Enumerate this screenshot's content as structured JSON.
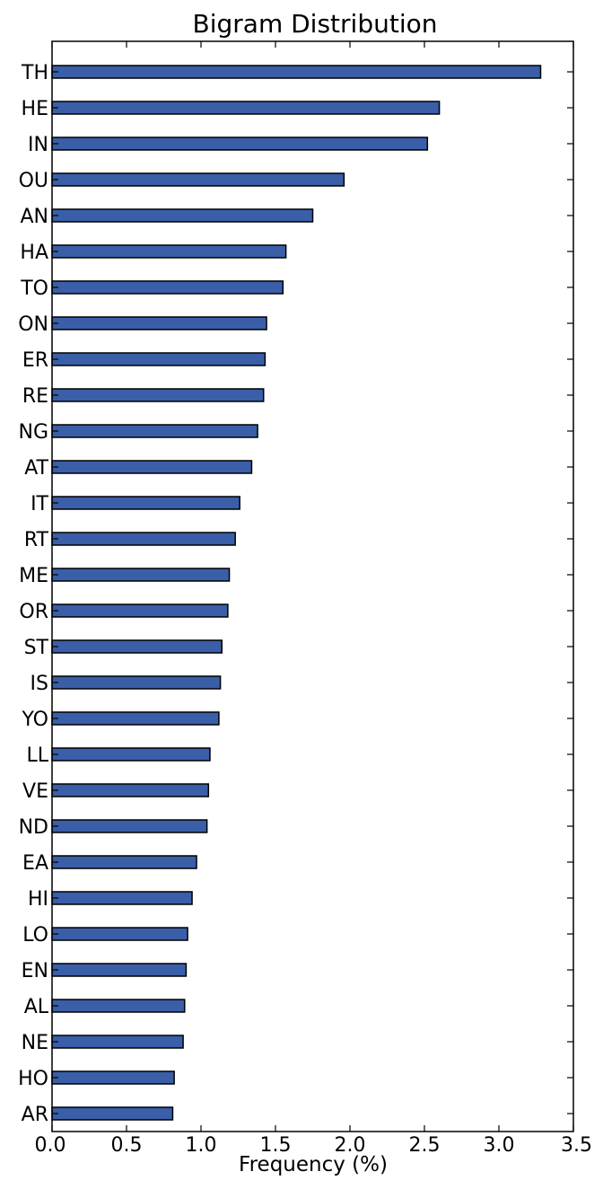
{
  "chart_data": {
    "type": "bar",
    "orientation": "horizontal",
    "title": "Bigram Distribution",
    "xlabel": "Frequency (%)",
    "ylabel": "",
    "xlim": [
      0,
      3.5
    ],
    "xticks": [
      "0.0",
      "0.5",
      "1.0",
      "1.5",
      "2.0",
      "2.5",
      "3.0",
      "3.5"
    ],
    "grid": false,
    "bar_color": "#3a5ea8",
    "categories": [
      "TH",
      "HE",
      "IN",
      "OU",
      "AN",
      "HA",
      "TO",
      "ON",
      "ER",
      "RE",
      "NG",
      "AT",
      "IT",
      "RT",
      "ME",
      "OR",
      "ST",
      "IS",
      "YO",
      "LL",
      "VE",
      "ND",
      "EA",
      "HI",
      "LO",
      "EN",
      "AL",
      "NE",
      "HO",
      "AR"
    ],
    "values": [
      3.28,
      2.6,
      2.52,
      1.96,
      1.75,
      1.57,
      1.55,
      1.44,
      1.43,
      1.42,
      1.38,
      1.34,
      1.26,
      1.23,
      1.19,
      1.18,
      1.14,
      1.13,
      1.12,
      1.06,
      1.05,
      1.04,
      0.97,
      0.94,
      0.91,
      0.9,
      0.89,
      0.88,
      0.82,
      0.81
    ]
  }
}
